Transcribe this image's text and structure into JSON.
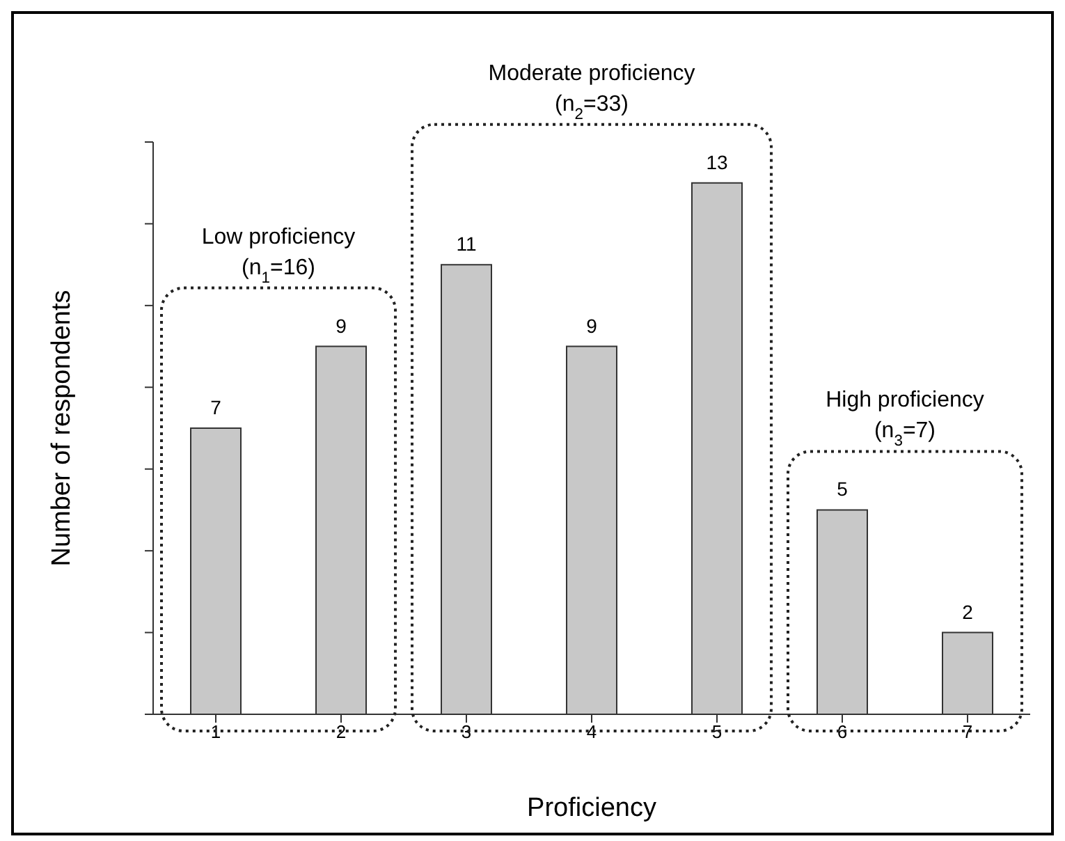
{
  "chart_data": {
    "type": "bar",
    "xlabel": "Proficiency",
    "ylabel": "Number of respondents",
    "categories": [
      "1",
      "2",
      "3",
      "4",
      "5",
      "6",
      "7"
    ],
    "values": [
      7,
      9,
      11,
      9,
      13,
      5,
      2
    ],
    "color": "#c8c8c8",
    "ylim": [
      0,
      14
    ],
    "yticks": [
      {
        "value": 0,
        "label": null
      },
      {
        "value": 2,
        "label": null
      },
      {
        "value": 4,
        "label": null
      },
      {
        "value": 6,
        "label": null
      },
      {
        "value": 8,
        "label": null
      },
      {
        "value": 10,
        "label": null
      },
      {
        "value": 12,
        "label": null
      },
      {
        "value": 14,
        "label": null
      }
    ],
    "tick_labels": "x",
    "data_labels": true,
    "grid": false,
    "legend": false,
    "annotations": [
      "Low proficiency (n$_{1}$=16)",
      "Moderate proficiency (n$_{2}$=33)",
      "High proficiency (n$_{3}$=7)"
    ]
  }
}
